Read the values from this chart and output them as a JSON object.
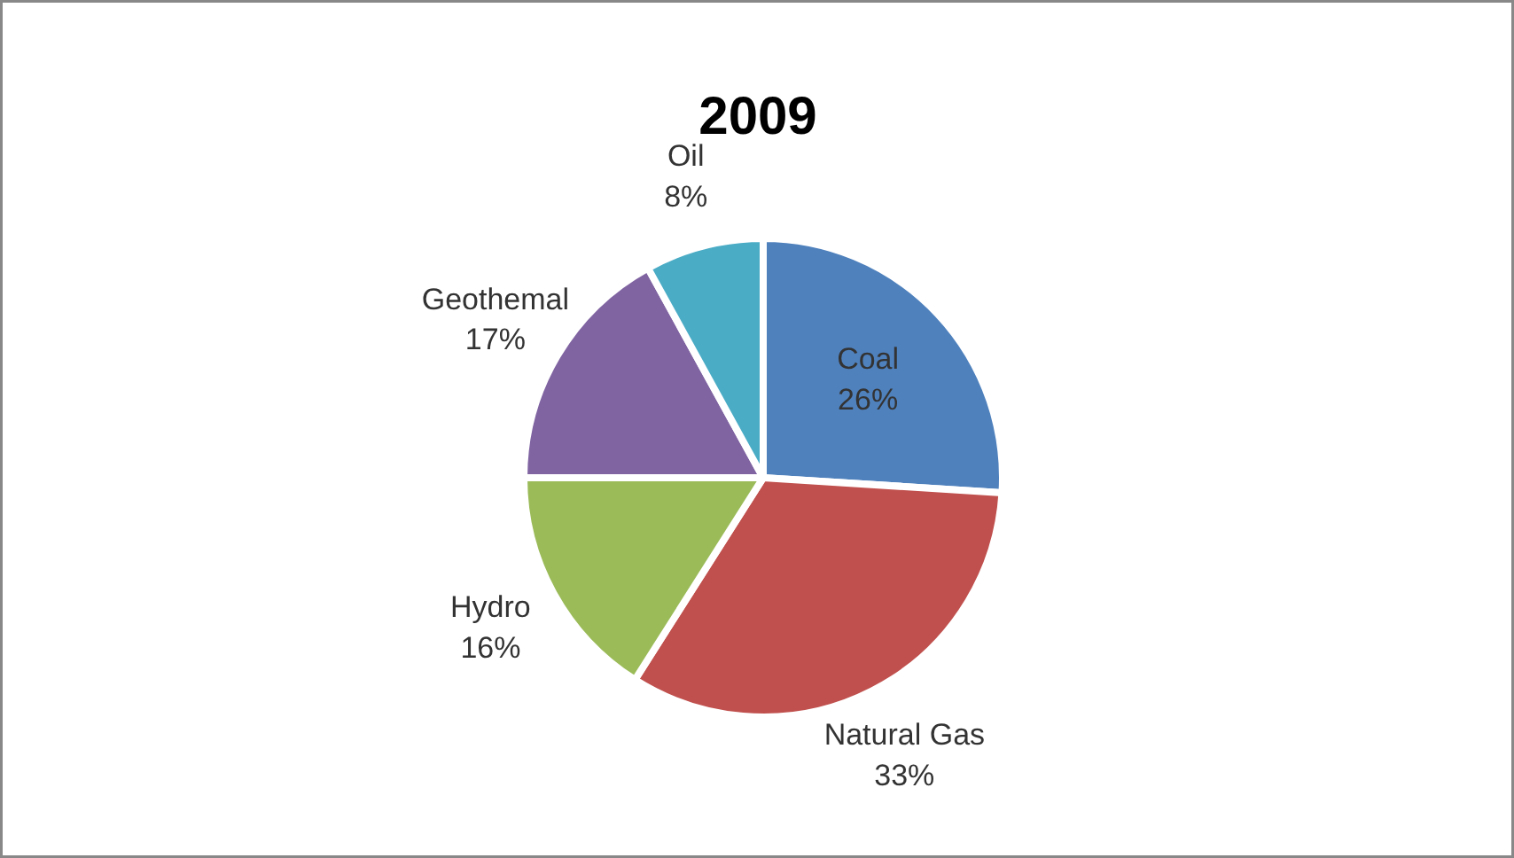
{
  "chart_data": {
    "type": "pie",
    "title": "2009",
    "categories": [
      "Coal",
      "Natural Gas",
      "Hydro",
      "Geothemal",
      "Oil"
    ],
    "values": [
      26,
      33,
      16,
      17,
      8
    ],
    "value_labels": [
      "26%",
      "33%",
      "16%",
      "17%",
      "8%"
    ],
    "colors": [
      "#4f81bd",
      "#c0504d",
      "#9bbb59",
      "#8064a2",
      "#4bacc6"
    ],
    "legend": false
  }
}
